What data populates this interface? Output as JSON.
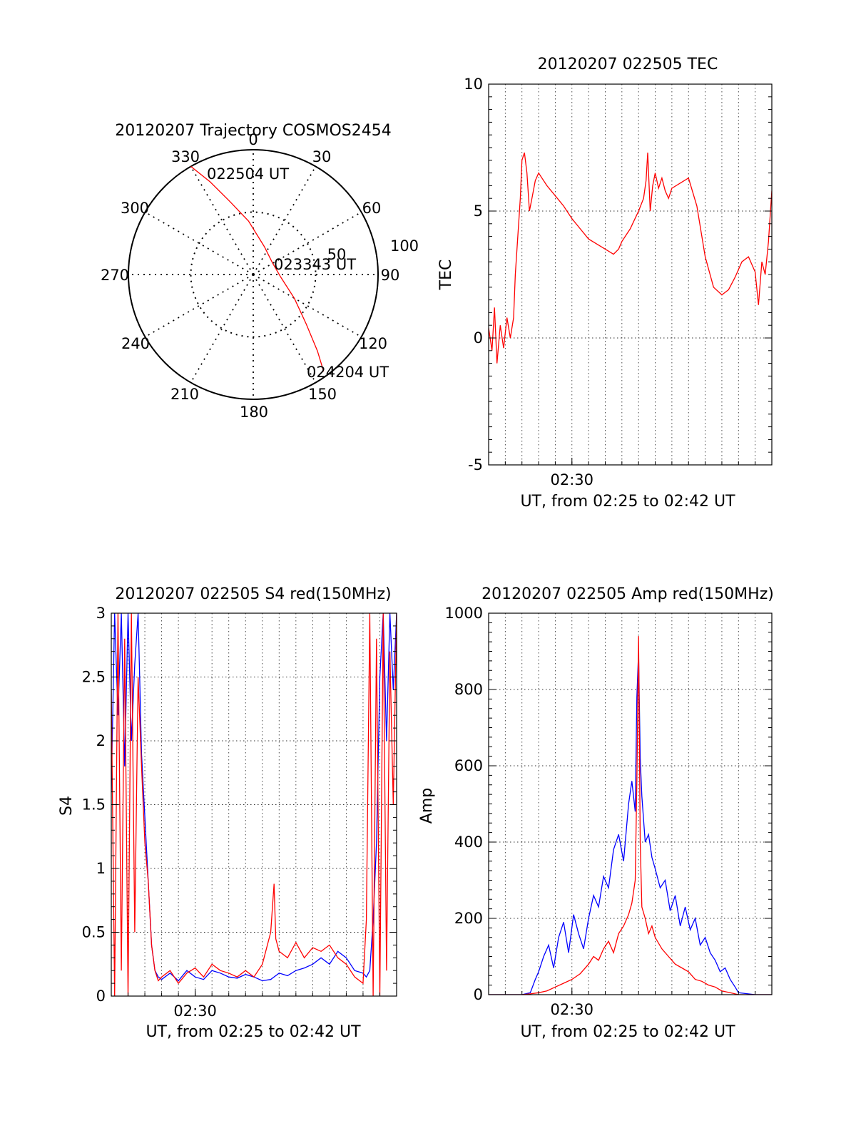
{
  "colors": {
    "red": "#ff0000",
    "blue": "#0000ff",
    "axis": "#000000"
  },
  "chart_data": [
    {
      "type": "polar",
      "title": "20120207 Trajectory COSMOS2454",
      "angle_labels": [
        "0",
        "30",
        "60",
        "90",
        "120",
        "150",
        "180",
        "210",
        "240",
        "270",
        "300",
        "330"
      ],
      "radius_labels": [
        "50",
        "100"
      ],
      "radius_max": 100,
      "grid": true,
      "trajectory": {
        "color": "#ff0000",
        "points": [
          {
            "az": 330,
            "r": 100
          },
          {
            "az": 335,
            "r": 82
          },
          {
            "az": 342,
            "r": 62
          },
          {
            "az": 355,
            "r": 43
          },
          {
            "az": 22,
            "r": 24
          },
          {
            "az": 60,
            "r": 18
          },
          {
            "az": 95,
            "r": 22
          },
          {
            "az": 120,
            "r": 38
          },
          {
            "az": 133,
            "r": 58
          },
          {
            "az": 140,
            "r": 80
          },
          {
            "az": 144,
            "r": 96
          }
        ]
      },
      "annotations": [
        {
          "text": "022504 UT",
          "az": 330,
          "r": 100
        },
        {
          "text": "023343 UT",
          "az": 75,
          "r": 20
        },
        {
          "text": "024204 UT",
          "az": 144,
          "r": 96
        }
      ]
    },
    {
      "type": "line",
      "title": "20120207 022505 TEC",
      "xlabel": "UT, from 02:25 to 02:42 UT",
      "ylabel": "TEC",
      "xlim": [
        0,
        17
      ],
      "ylim": [
        -5,
        10
      ],
      "yticks": [
        "10",
        "5",
        "0",
        "-5"
      ],
      "xticks": [
        {
          "x": 5,
          "label": "02:30"
        }
      ],
      "grid": true,
      "series": [
        {
          "color": "#ff0000",
          "x": [
            0,
            0.2,
            0.35,
            0.5,
            0.7,
            0.9,
            1.1,
            1.3,
            1.5,
            1.6,
            1.75,
            1.9,
            2.0,
            2.15,
            2.3,
            2.45,
            2.6,
            2.8,
            3.0,
            3.2,
            3.5,
            4.0,
            4.5,
            5.0,
            5.5,
            6.0,
            6.5,
            7.0,
            7.5,
            7.8,
            8.0,
            8.5,
            9.0,
            9.3,
            9.45,
            9.55,
            9.7,
            9.85,
            10.0,
            10.2,
            10.4,
            10.6,
            10.8,
            11.0,
            11.5,
            12.0,
            12.5,
            13.0,
            13.5,
            14.0,
            14.4,
            14.8,
            15.2,
            15.6,
            16.0,
            16.2,
            16.4,
            16.6,
            16.8,
            17.0
          ],
          "y": [
            0.4,
            -0.5,
            1.2,
            -1.0,
            0.5,
            -0.4,
            0.8,
            0.0,
            0.8,
            2.5,
            4.0,
            5.5,
            7.0,
            7.3,
            6.5,
            5.0,
            5.5,
            6.2,
            6.5,
            6.3,
            6.0,
            5.6,
            5.2,
            4.7,
            4.3,
            3.9,
            3.7,
            3.5,
            3.3,
            3.5,
            3.8,
            4.3,
            5.0,
            5.5,
            6.2,
            7.3,
            5.0,
            6.0,
            6.5,
            5.9,
            6.3,
            5.8,
            5.5,
            5.9,
            6.1,
            6.3,
            5.2,
            3.2,
            2.0,
            1.7,
            1.9,
            2.4,
            3.0,
            3.2,
            2.6,
            1.3,
            3.0,
            2.5,
            3.8,
            5.8
          ]
        }
      ]
    },
    {
      "type": "line",
      "title": "20120207 022505 S4 red(150MHz)",
      "xlabel": "UT, from 02:25 to 02:42 UT",
      "ylabel": "S4",
      "xlim": [
        0,
        17
      ],
      "ylim": [
        0,
        3
      ],
      "yticks": [
        "0",
        "0.5",
        "1",
        "1.5",
        "2",
        "2.5",
        "3"
      ],
      "xticks": [
        {
          "x": 5,
          "label": "02:30"
        }
      ],
      "grid": true,
      "series": [
        {
          "color": "#0000ff",
          "x": [
            0,
            0.2,
            0.4,
            0.6,
            0.8,
            1.0,
            1.2,
            1.4,
            1.6,
            1.8,
            2.0,
            2.2,
            2.4,
            2.6,
            2.8,
            3.0,
            3.5,
            4.0,
            4.5,
            5.0,
            5.5,
            6.0,
            6.5,
            7.0,
            7.5,
            8.0,
            8.5,
            9.0,
            9.5,
            10.0,
            10.5,
            11.0,
            11.5,
            12.0,
            12.5,
            13.0,
            13.5,
            14.0,
            14.5,
            15.0,
            15.2,
            15.4,
            15.6,
            15.8,
            16.0,
            16.2,
            16.4,
            16.6,
            16.8,
            17.0
          ],
          "y": [
            1.6,
            3.0,
            2.2,
            3.0,
            1.8,
            3.0,
            2.0,
            2.6,
            3.0,
            1.9,
            1.4,
            0.9,
            0.4,
            0.2,
            0.15,
            0.13,
            0.18,
            0.12,
            0.2,
            0.15,
            0.13,
            0.2,
            0.18,
            0.15,
            0.14,
            0.17,
            0.15,
            0.12,
            0.13,
            0.18,
            0.16,
            0.2,
            0.22,
            0.25,
            0.3,
            0.25,
            0.35,
            0.3,
            0.2,
            0.18,
            0.15,
            0.2,
            0.6,
            1.2,
            2.5,
            3.0,
            2.0,
            3.0,
            2.4,
            3.0
          ]
        },
        {
          "color": "#ff0000",
          "x": [
            0,
            0.2,
            0.4,
            0.6,
            0.8,
            1.0,
            1.2,
            1.4,
            1.6,
            1.8,
            2.0,
            2.2,
            2.4,
            2.6,
            2.8,
            3.0,
            3.5,
            4.0,
            4.5,
            5.0,
            5.5,
            6.0,
            6.5,
            7.0,
            7.5,
            8.0,
            8.5,
            9.0,
            9.5,
            9.7,
            9.8,
            10.0,
            10.5,
            11.0,
            11.5,
            12.0,
            12.5,
            13.0,
            13.5,
            14.0,
            14.5,
            15.0,
            15.2,
            15.4,
            15.6,
            15.8,
            16.0,
            16.2,
            16.4,
            16.6,
            16.8,
            17.0
          ],
          "y": [
            2.4,
            0.0,
            3.0,
            0.2,
            2.8,
            0.0,
            3.0,
            0.5,
            2.5,
            1.8,
            1.2,
            0.9,
            0.4,
            0.2,
            0.12,
            0.15,
            0.2,
            0.1,
            0.18,
            0.22,
            0.15,
            0.25,
            0.2,
            0.18,
            0.15,
            0.2,
            0.15,
            0.25,
            0.5,
            0.88,
            0.45,
            0.35,
            0.3,
            0.42,
            0.3,
            0.38,
            0.35,
            0.4,
            0.3,
            0.25,
            0.15,
            0.1,
            0.6,
            3.0,
            0.0,
            2.8,
            0.0,
            3.0,
            0.2,
            2.7,
            1.5,
            3.0
          ]
        }
      ]
    },
    {
      "type": "line",
      "title": "20120207 022505 Amp red(150MHz)",
      "xlabel": "UT, from 02:25 to 02:42 UT",
      "ylabel": "Amp",
      "xlim": [
        0,
        17
      ],
      "ylim": [
        0,
        1000
      ],
      "yticks": [
        "0",
        "200",
        "400",
        "600",
        "800",
        "1000"
      ],
      "xticks": [
        {
          "x": 5,
          "label": "02:30"
        }
      ],
      "grid": true,
      "series": [
        {
          "color": "#0000ff",
          "x": [
            0,
            1.0,
            2.0,
            2.5,
            2.8,
            3.0,
            3.3,
            3.6,
            3.9,
            4.2,
            4.5,
            4.8,
            5.1,
            5.4,
            5.7,
            6.0,
            6.3,
            6.6,
            6.9,
            7.2,
            7.5,
            7.8,
            8.1,
            8.4,
            8.6,
            8.8,
            8.9,
            9.0,
            9.1,
            9.2,
            9.4,
            9.6,
            9.8,
            10.0,
            10.3,
            10.6,
            10.9,
            11.2,
            11.5,
            11.8,
            12.1,
            12.4,
            12.7,
            13.0,
            13.3,
            13.6,
            13.9,
            14.2,
            14.5,
            14.8,
            15.0,
            16.0,
            17.0
          ],
          "y": [
            0,
            0,
            0,
            5,
            40,
            60,
            100,
            130,
            70,
            150,
            190,
            110,
            210,
            160,
            120,
            200,
            260,
            230,
            310,
            280,
            380,
            420,
            350,
            500,
            560,
            480,
            780,
            900,
            620,
            520,
            400,
            420,
            360,
            330,
            280,
            300,
            220,
            260,
            180,
            230,
            170,
            200,
            130,
            150,
            110,
            90,
            60,
            70,
            40,
            20,
            5,
            0,
            0
          ]
        },
        {
          "color": "#ff0000",
          "x": [
            0,
            1.0,
            2.0,
            2.5,
            3.0,
            3.5,
            4.0,
            4.5,
            5.0,
            5.5,
            6.0,
            6.3,
            6.6,
            6.9,
            7.2,
            7.5,
            7.8,
            8.1,
            8.4,
            8.6,
            8.8,
            8.9,
            9.0,
            9.1,
            9.2,
            9.4,
            9.6,
            9.8,
            10.0,
            10.4,
            10.8,
            11.2,
            11.6,
            12.0,
            12.4,
            12.8,
            13.2,
            13.6,
            14.0,
            14.5,
            15.0,
            16.0,
            17.0
          ],
          "y": [
            0,
            0,
            0,
            2,
            5,
            10,
            20,
            30,
            40,
            55,
            80,
            100,
            90,
            120,
            140,
            110,
            160,
            180,
            210,
            240,
            300,
            560,
            940,
            400,
            230,
            200,
            160,
            180,
            150,
            120,
            100,
            80,
            70,
            60,
            40,
            35,
            25,
            20,
            10,
            5,
            0,
            0,
            0
          ]
        }
      ]
    }
  ]
}
